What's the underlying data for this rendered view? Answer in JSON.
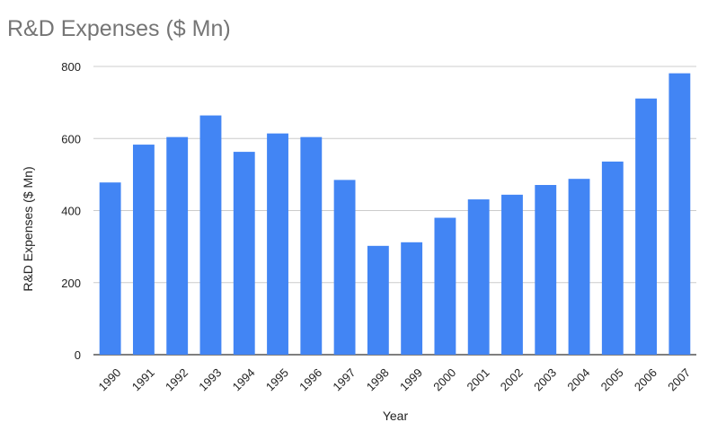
{
  "chart_data": {
    "type": "bar",
    "title": "R&D Expenses ($ Mn)",
    "xlabel": "Year",
    "ylabel": "R&D Expenses ($ Mn)",
    "categories": [
      "1990",
      "1991",
      "1992",
      "1993",
      "1994",
      "1995",
      "1996",
      "1997",
      "1998",
      "1999",
      "2000",
      "2001",
      "2002",
      "2003",
      "2004",
      "2005",
      "2006",
      "2007"
    ],
    "series": [
      {
        "values": [
          478,
          583,
          604,
          664,
          563,
          614,
          604,
          485,
          302,
          312,
          380,
          431,
          444,
          471,
          488,
          536,
          711,
          781
        ],
        "color": "#4285f4"
      }
    ],
    "ylim": [
      0,
      800
    ],
    "yticks": [
      0,
      200,
      400,
      600,
      800
    ],
    "grid": true,
    "legend": "none"
  }
}
